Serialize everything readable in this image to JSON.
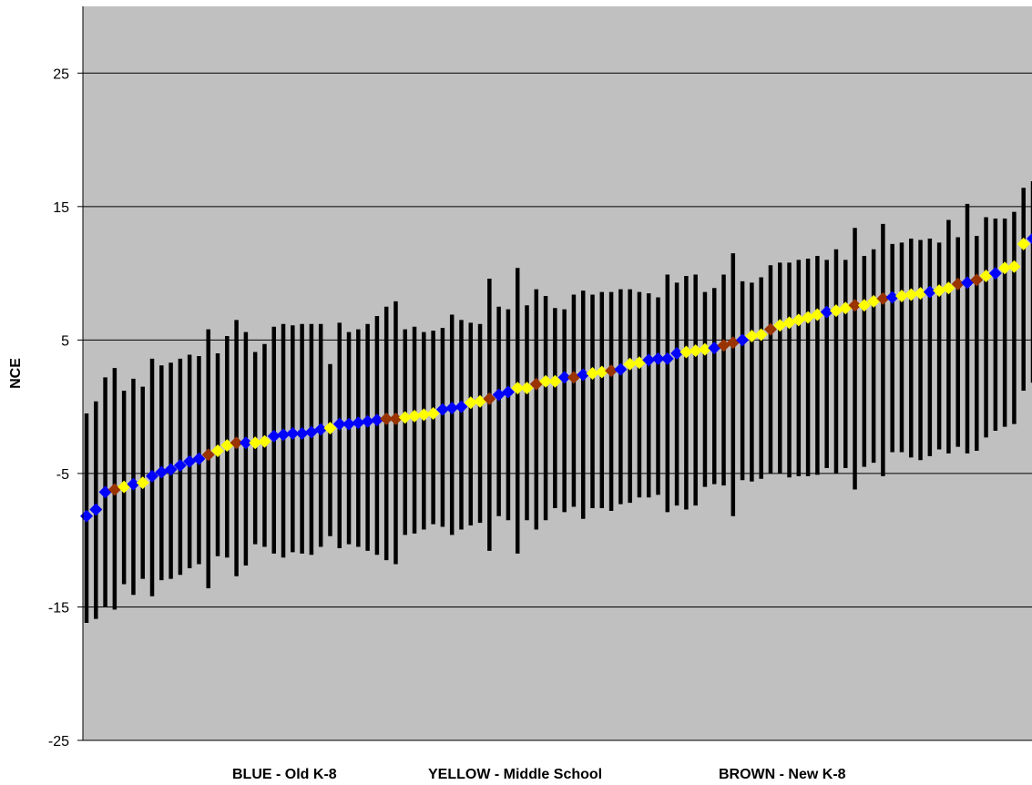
{
  "chart_data": {
    "type": "scatter",
    "subtype": "ranked-intervals",
    "title": "",
    "ylabel": "NCE",
    "xlabel": "",
    "ylim": [
      -25,
      30
    ],
    "y_ticks": [
      25,
      15,
      5,
      -5,
      -15,
      -25
    ],
    "grid": true,
    "background_color": "#c0c0c0",
    "interval_color": "#000000",
    "legend": [
      {
        "label": "BLUE - Old K-8",
        "color": "#0000ff"
      },
      {
        "label": "YELLOW - Middle School",
        "color": "#ffff00"
      },
      {
        "label": "BROWN - New K-8",
        "color": "#993300"
      }
    ],
    "legend_placement": "bottom",
    "colors": {
      "B": "#0000ff",
      "Y": "#ffff00",
      "R": "#993300"
    },
    "points": [
      {
        "y": -8.2,
        "low": -16.2,
        "high": -0.5,
        "group": "B"
      },
      {
        "y": -7.7,
        "low": -15.9,
        "high": 0.4,
        "group": "B"
      },
      {
        "y": -6.4,
        "low": -15.0,
        "high": 2.2,
        "group": "B"
      },
      {
        "y": -6.2,
        "low": -15.2,
        "high": 2.9,
        "group": "R"
      },
      {
        "y": -6.0,
        "low": -13.3,
        "high": 1.2,
        "group": "Y"
      },
      {
        "y": -5.8,
        "low": -14.1,
        "high": 2.1,
        "group": "B"
      },
      {
        "y": -5.7,
        "low": -12.9,
        "high": 1.5,
        "group": "Y"
      },
      {
        "y": -5.2,
        "low": -14.2,
        "high": 3.6,
        "group": "B"
      },
      {
        "y": -4.9,
        "low": -13.0,
        "high": 3.1,
        "group": "B"
      },
      {
        "y": -4.7,
        "low": -12.9,
        "high": 3.3,
        "group": "B"
      },
      {
        "y": -4.4,
        "low": -12.6,
        "high": 3.6,
        "group": "B"
      },
      {
        "y": -4.1,
        "low": -12.1,
        "high": 3.9,
        "group": "B"
      },
      {
        "y": -3.9,
        "low": -11.8,
        "high": 3.8,
        "group": "B"
      },
      {
        "y": -3.6,
        "low": -13.6,
        "high": 5.8,
        "group": "R"
      },
      {
        "y": -3.3,
        "low": -11.2,
        "high": 4.0,
        "group": "Y"
      },
      {
        "y": -2.9,
        "low": -11.3,
        "high": 5.3,
        "group": "Y"
      },
      {
        "y": -2.7,
        "low": -12.7,
        "high": 6.5,
        "group": "R"
      },
      {
        "y": -2.7,
        "low": -11.9,
        "high": 5.6,
        "group": "B"
      },
      {
        "y": -2.7,
        "low": -10.3,
        "high": 4.1,
        "group": "Y"
      },
      {
        "y": -2.6,
        "low": -10.5,
        "high": 4.7,
        "group": "Y"
      },
      {
        "y": -2.2,
        "low": -11.0,
        "high": 6.0,
        "group": "B"
      },
      {
        "y": -2.1,
        "low": -11.3,
        "high": 6.2,
        "group": "B"
      },
      {
        "y": -2.0,
        "low": -10.9,
        "high": 6.1,
        "group": "B"
      },
      {
        "y": -2.0,
        "low": -11.0,
        "high": 6.2,
        "group": "B"
      },
      {
        "y": -1.9,
        "low": -11.1,
        "high": 6.2,
        "group": "B"
      },
      {
        "y": -1.7,
        "low": -10.5,
        "high": 6.2,
        "group": "B"
      },
      {
        "y": -1.6,
        "low": -9.7,
        "high": 3.2,
        "group": "Y"
      },
      {
        "y": -1.3,
        "low": -10.6,
        "high": 6.3,
        "group": "B"
      },
      {
        "y": -1.3,
        "low": -10.3,
        "high": 5.6,
        "group": "B"
      },
      {
        "y": -1.2,
        "low": -10.5,
        "high": 5.8,
        "group": "B"
      },
      {
        "y": -1.1,
        "low": -10.8,
        "high": 6.2,
        "group": "B"
      },
      {
        "y": -1.0,
        "low": -11.1,
        "high": 6.8,
        "group": "B"
      },
      {
        "y": -0.9,
        "low": -11.5,
        "high": 7.5,
        "group": "R"
      },
      {
        "y": -0.9,
        "low": -11.8,
        "high": 7.9,
        "group": "R"
      },
      {
        "y": -0.8,
        "low": -9.6,
        "high": 5.8,
        "group": "Y"
      },
      {
        "y": -0.7,
        "low": -9.5,
        "high": 6.0,
        "group": "Y"
      },
      {
        "y": -0.6,
        "low": -9.2,
        "high": 5.6,
        "group": "Y"
      },
      {
        "y": -0.5,
        "low": -8.8,
        "high": 5.7,
        "group": "Y"
      },
      {
        "y": -0.2,
        "low": -9.0,
        "high": 5.9,
        "group": "B"
      },
      {
        "y": -0.1,
        "low": -9.6,
        "high": 6.9,
        "group": "B"
      },
      {
        "y": 0.0,
        "low": -9.2,
        "high": 6.5,
        "group": "B"
      },
      {
        "y": 0.3,
        "low": -8.9,
        "high": 6.3,
        "group": "Y"
      },
      {
        "y": 0.4,
        "low": -8.7,
        "high": 6.2,
        "group": "Y"
      },
      {
        "y": 0.6,
        "low": -10.8,
        "high": 9.6,
        "group": "R"
      },
      {
        "y": 0.9,
        "low": -8.2,
        "high": 7.5,
        "group": "B"
      },
      {
        "y": 1.1,
        "low": -8.5,
        "high": 7.3,
        "group": "B"
      },
      {
        "y": 1.4,
        "low": -11.0,
        "high": 10.4,
        "group": "Y"
      },
      {
        "y": 1.4,
        "low": -8.5,
        "high": 7.6,
        "group": "Y"
      },
      {
        "y": 1.7,
        "low": -9.2,
        "high": 8.8,
        "group": "R"
      },
      {
        "y": 1.9,
        "low": -8.5,
        "high": 8.3,
        "group": "Y"
      },
      {
        "y": 1.9,
        "low": -7.6,
        "high": 7.4,
        "group": "Y"
      },
      {
        "y": 2.2,
        "low": -7.9,
        "high": 7.3,
        "group": "B"
      },
      {
        "y": 2.2,
        "low": -7.5,
        "high": 8.4,
        "group": "R"
      },
      {
        "y": 2.4,
        "low": -8.4,
        "high": 8.7,
        "group": "B"
      },
      {
        "y": 2.5,
        "low": -7.6,
        "high": 8.4,
        "group": "Y"
      },
      {
        "y": 2.6,
        "low": -7.6,
        "high": 8.6,
        "group": "Y"
      },
      {
        "y": 2.7,
        "low": -7.8,
        "high": 8.6,
        "group": "R"
      },
      {
        "y": 2.8,
        "low": -7.3,
        "high": 8.8,
        "group": "B"
      },
      {
        "y": 3.2,
        "low": -7.2,
        "high": 8.8,
        "group": "Y"
      },
      {
        "y": 3.3,
        "low": -6.8,
        "high": 8.6,
        "group": "Y"
      },
      {
        "y": 3.5,
        "low": -6.8,
        "high": 8.5,
        "group": "B"
      },
      {
        "y": 3.6,
        "low": -6.6,
        "high": 8.2,
        "group": "B"
      },
      {
        "y": 3.6,
        "low": -7.9,
        "high": 9.9,
        "group": "B"
      },
      {
        "y": 4.0,
        "low": -7.4,
        "high": 9.3,
        "group": "B"
      },
      {
        "y": 4.1,
        "low": -7.7,
        "high": 9.8,
        "group": "Y"
      },
      {
        "y": 4.2,
        "low": -7.4,
        "high": 9.9,
        "group": "Y"
      },
      {
        "y": 4.3,
        "low": -6.0,
        "high": 8.6,
        "group": "Y"
      },
      {
        "y": 4.4,
        "low": -5.8,
        "high": 8.9,
        "group": "B"
      },
      {
        "y": 4.6,
        "low": -5.9,
        "high": 9.9,
        "group": "R"
      },
      {
        "y": 4.8,
        "low": -8.2,
        "high": 11.5,
        "group": "R"
      },
      {
        "y": 5.0,
        "low": -5.5,
        "high": 9.4,
        "group": "B"
      },
      {
        "y": 5.3,
        "low": -5.6,
        "high": 9.3,
        "group": "Y"
      },
      {
        "y": 5.4,
        "low": -5.4,
        "high": 9.7,
        "group": "Y"
      },
      {
        "y": 5.8,
        "low": -5.0,
        "high": 10.6,
        "group": "R"
      },
      {
        "y": 6.1,
        "low": -5.0,
        "high": 10.8,
        "group": "Y"
      },
      {
        "y": 6.3,
        "low": -5.3,
        "high": 10.8,
        "group": "Y"
      },
      {
        "y": 6.5,
        "low": -5.2,
        "high": 11.0,
        "group": "Y"
      },
      {
        "y": 6.7,
        "low": -5.2,
        "high": 11.1,
        "group": "Y"
      },
      {
        "y": 6.9,
        "low": -5.1,
        "high": 11.3,
        "group": "Y"
      },
      {
        "y": 7.1,
        "low": -4.6,
        "high": 11.0,
        "group": "B"
      },
      {
        "y": 7.2,
        "low": -5.0,
        "high": 11.8,
        "group": "Y"
      },
      {
        "y": 7.4,
        "low": -4.6,
        "high": 11.0,
        "group": "Y"
      },
      {
        "y": 7.6,
        "low": -6.2,
        "high": 13.4,
        "group": "R"
      },
      {
        "y": 7.6,
        "low": -4.5,
        "high": 11.3,
        "group": "Y"
      },
      {
        "y": 7.9,
        "low": -4.2,
        "high": 11.8,
        "group": "Y"
      },
      {
        "y": 8.1,
        "low": -5.2,
        "high": 13.7,
        "group": "R"
      },
      {
        "y": 8.2,
        "low": -3.4,
        "high": 12.2,
        "group": "B"
      },
      {
        "y": 8.3,
        "low": -3.4,
        "high": 12.3,
        "group": "Y"
      },
      {
        "y": 8.4,
        "low": -3.8,
        "high": 12.6,
        "group": "Y"
      },
      {
        "y": 8.5,
        "low": -4.0,
        "high": 12.5,
        "group": "Y"
      },
      {
        "y": 8.6,
        "low": -3.7,
        "high": 12.6,
        "group": "B"
      },
      {
        "y": 8.7,
        "low": -3.2,
        "high": 12.3,
        "group": "Y"
      },
      {
        "y": 8.9,
        "low": -3.5,
        "high": 14.0,
        "group": "Y"
      },
      {
        "y": 9.2,
        "low": -3.0,
        "high": 12.7,
        "group": "R"
      },
      {
        "y": 9.3,
        "low": -3.5,
        "high": 15.2,
        "group": "B"
      },
      {
        "y": 9.5,
        "low": -3.3,
        "high": 12.8,
        "group": "R"
      },
      {
        "y": 9.8,
        "low": -2.3,
        "high": 14.2,
        "group": "Y"
      },
      {
        "y": 10.0,
        "low": -1.8,
        "high": 14.1,
        "group": "B"
      },
      {
        "y": 10.4,
        "low": -1.5,
        "high": 14.1,
        "group": "Y"
      },
      {
        "y": 10.5,
        "low": -1.3,
        "high": 14.6,
        "group": "Y"
      },
      {
        "y": 12.2,
        "low": 1.2,
        "high": 16.4,
        "group": "Y"
      },
      {
        "y": 12.6,
        "low": 1.8,
        "high": 16.9,
        "group": "B"
      }
    ]
  }
}
